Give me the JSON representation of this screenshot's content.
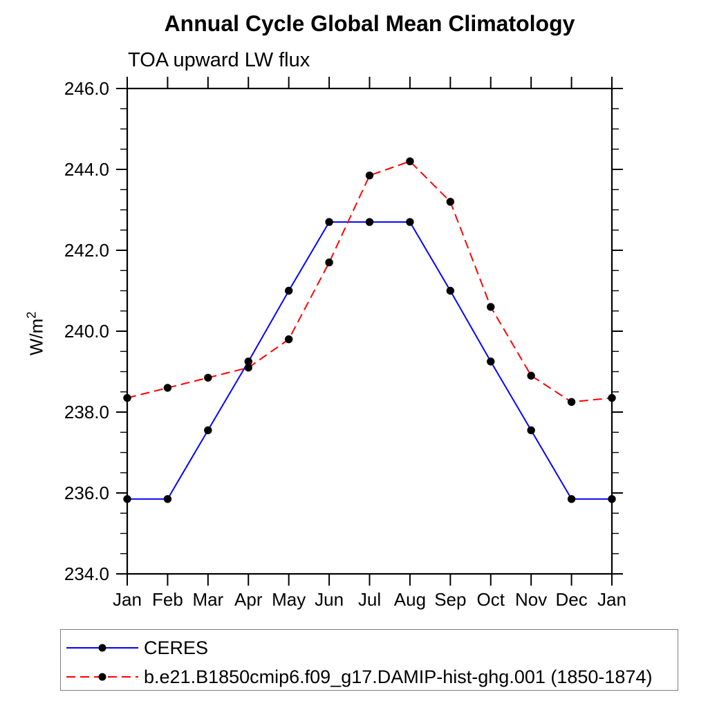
{
  "chart_data": {
    "type": "line",
    "title": "Annual Cycle Global Mean Climatology",
    "subtitle": "TOA upward LW flux",
    "ylabel_base": "W/m",
    "ylabel_exponent": "2",
    "categories": [
      "Jan",
      "Feb",
      "Mar",
      "Apr",
      "May",
      "Jun",
      "Jul",
      "Aug",
      "Sep",
      "Oct",
      "Nov",
      "Dec",
      "Jan"
    ],
    "ylim": [
      234.0,
      246.0
    ],
    "ytick_major_interval": 2.0,
    "ytick_minor_interval": 0.5,
    "ytick_labels": [
      "234.0",
      "236.0",
      "238.0",
      "240.0",
      "242.0",
      "244.0",
      "246.0"
    ],
    "grid": false,
    "legend_position": "bottom-left",
    "marker_color": "#000000",
    "axis_color": "#000000",
    "series": [
      {
        "name": "CERES",
        "color": "#0000ff",
        "line_style": "solid",
        "marker": "circle",
        "values": [
          235.85,
          235.85,
          237.55,
          239.25,
          241.0,
          242.7,
          242.7,
          242.7,
          241.0,
          239.25,
          237.55,
          235.85,
          235.85
        ]
      },
      {
        "name": "b.e21.B1850cmip6.f09_g17.DAMIP-hist-ghg.001 (1850-1874)",
        "color": "#ff0000",
        "line_style": "dashed",
        "marker": "circle",
        "values": [
          238.35,
          238.6,
          238.85,
          239.1,
          239.8,
          241.7,
          243.85,
          244.2,
          243.2,
          240.6,
          238.9,
          238.25,
          238.35
        ]
      }
    ]
  }
}
